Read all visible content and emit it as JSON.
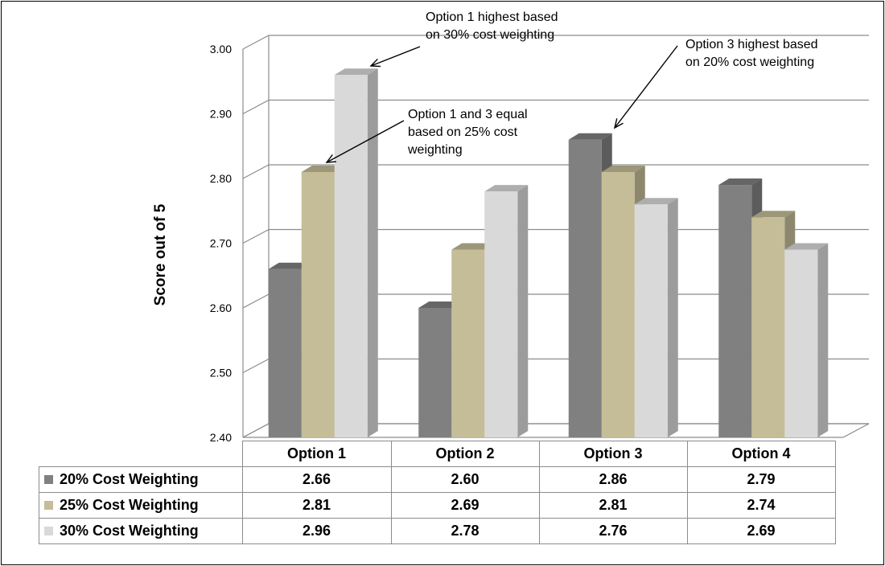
{
  "chart_data": {
    "type": "bar",
    "categories": [
      "Option 1",
      "Option 2",
      "Option 3",
      "Option 4"
    ],
    "series": [
      {
        "name": "20% Cost Weighting",
        "values": [
          2.66,
          2.6,
          2.86,
          2.79
        ],
        "color": "#808080"
      },
      {
        "name": "25% Cost Weighting",
        "values": [
          2.81,
          2.69,
          2.81,
          2.74
        ],
        "color": "#c4bd97"
      },
      {
        "name": "30% Cost Weighting",
        "values": [
          2.96,
          2.78,
          2.76,
          2.69
        ],
        "color": "#d9d9d9"
      }
    ],
    "value_labels": [
      [
        "2.66",
        "2.60",
        "2.86",
        "2.79"
      ],
      [
        "2.81",
        "2.69",
        "2.81",
        "2.74"
      ],
      [
        "2.96",
        "2.78",
        "2.76",
        "2.69"
      ]
    ],
    "ylabel": "Score out of 5",
    "ylim": [
      2.4,
      3.0
    ],
    "yticks": [
      "2.40",
      "2.50",
      "2.60",
      "2.70",
      "2.80",
      "2.90",
      "3.00"
    ],
    "grid": true,
    "legend": "data-table",
    "annotations": [
      {
        "line1": "Option 1 highest based",
        "line2": "on 30% cost weighting",
        "line3": ""
      },
      {
        "line1": "Option 1 and 3 equal",
        "line2": "based on 25% cost",
        "line3": "weighting"
      },
      {
        "line1": "Option 3 highest based",
        "line2": "on 20% cost weighting",
        "line3": ""
      }
    ]
  }
}
